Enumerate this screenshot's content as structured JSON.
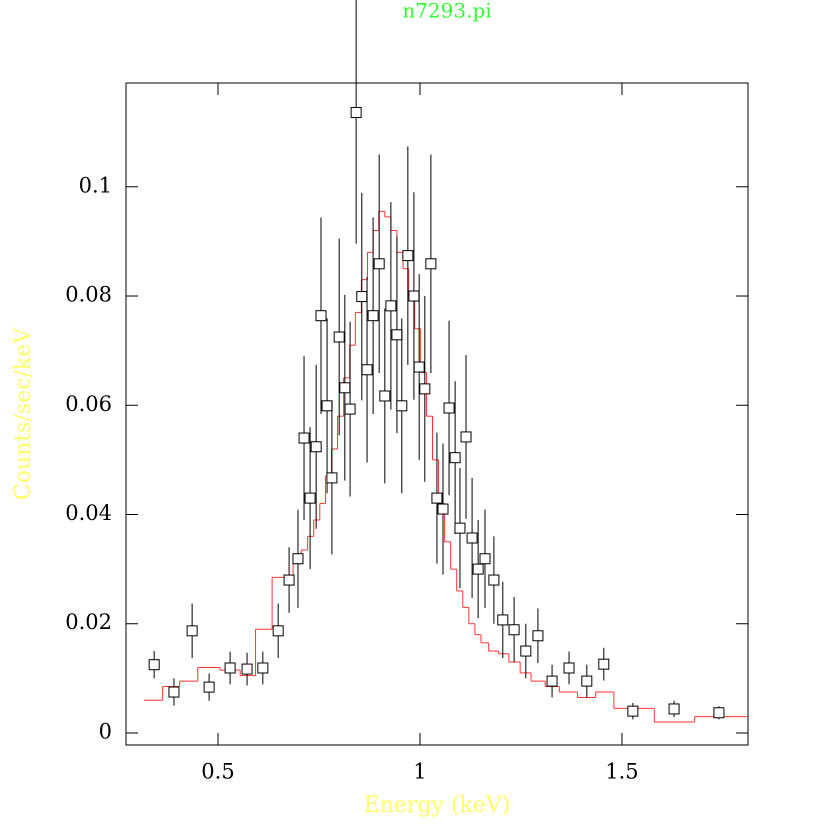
{
  "chart_data": {
    "type": "scatter",
    "title": "n7293.pi",
    "title_color": "#33ff33",
    "xlabel": "Energy (keV)",
    "ylabel": "Counts/sec/keV",
    "label_color": "#ffff66",
    "xlim": [
      0.2723,
      1.812
    ],
    "ylim": [
      -0.0022,
      0.119
    ],
    "xticks": [
      0.5,
      1,
      1.5
    ],
    "yticks": [
      0,
      0.02,
      0.04,
      0.06,
      0.08,
      0.1
    ],
    "series": [
      {
        "color": "#000000",
        "x": [
          0.342,
          0.391,
          0.436,
          0.478,
          0.53,
          0.572,
          0.611,
          0.649,
          0.676,
          0.698,
          0.713,
          0.728,
          0.743,
          0.755,
          0.77,
          0.782,
          0.8,
          0.814,
          0.827,
          0.842,
          0.856,
          0.869,
          0.884,
          0.899,
          0.913,
          0.928,
          0.943,
          0.955,
          0.97,
          0.985,
          0.998,
          1.012,
          1.027,
          1.042,
          1.057,
          1.072,
          1.087,
          1.099,
          1.114,
          1.129,
          1.144,
          1.161,
          1.183,
          1.205,
          1.233,
          1.262,
          1.292,
          1.327,
          1.369,
          1.413,
          1.455,
          1.527,
          1.629,
          1.74
        ],
        "values": [
          0.0125,
          0.0075,
          0.0187,
          0.0084,
          0.0119,
          0.0117,
          0.0119,
          0.0187,
          0.028,
          0.0319,
          0.054,
          0.043,
          0.0524,
          0.0764,
          0.0599,
          0.0467,
          0.0725,
          0.0632,
          0.0593,
          0.1136,
          0.0799,
          0.0665,
          0.0764,
          0.0859,
          0.0617,
          0.0782,
          0.0729,
          0.0599,
          0.0874,
          0.08,
          0.067,
          0.063,
          0.0859,
          0.043,
          0.041,
          0.0595,
          0.0504,
          0.0375,
          0.0542,
          0.0357,
          0.03,
          0.0319,
          0.028,
          0.0207,
          0.0189,
          0.015,
          0.0178,
          0.0095,
          0.0119,
          0.0095,
          0.0126,
          0.004,
          0.0044,
          0.0037
        ],
        "errors": [
          0.0025,
          0.0025,
          0.005,
          0.0025,
          0.003,
          0.003,
          0.003,
          0.005,
          0.006,
          0.009,
          0.015,
          0.013,
          0.015,
          0.018,
          0.016,
          0.014,
          0.018,
          0.017,
          0.016,
          0.024,
          0.019,
          0.017,
          0.018,
          0.02,
          0.016,
          0.019,
          0.018,
          0.016,
          0.02,
          0.019,
          0.017,
          0.017,
          0.02,
          0.012,
          0.012,
          0.016,
          0.014,
          0.011,
          0.015,
          0.011,
          0.009,
          0.009,
          0.008,
          0.007,
          0.006,
          0.005,
          0.005,
          0.003,
          0.003,
          0.003,
          0.003,
          0.0015,
          0.0015,
          0.0012
        ]
      }
    ],
    "model": {
      "color": "#ff3333",
      "bins": [
        0.317,
        0.363,
        0.405,
        0.45,
        0.505,
        0.555,
        0.593,
        0.634,
        0.686,
        0.706,
        0.722,
        0.737,
        0.752,
        0.766,
        0.781,
        0.796,
        0.811,
        0.826,
        0.84,
        0.855,
        0.87,
        0.884,
        0.898,
        0.913,
        0.928,
        0.943,
        0.958,
        0.972,
        0.987,
        1.001,
        1.016,
        1.031,
        1.046,
        1.061,
        1.076,
        1.091,
        1.106,
        1.121,
        1.136,
        1.151,
        1.17,
        1.195,
        1.22,
        1.248,
        1.275,
        1.31,
        1.345,
        1.39,
        1.435,
        1.48,
        1.58,
        1.68,
        1.81
      ],
      "values": [
        0.006,
        0.0085,
        0.0095,
        0.012,
        0.0115,
        0.0105,
        0.019,
        0.0285,
        0.031,
        0.0335,
        0.036,
        0.039,
        0.042,
        0.047,
        0.052,
        0.058,
        0.065,
        0.071,
        0.077,
        0.083,
        0.088,
        0.092,
        0.0955,
        0.0945,
        0.092,
        0.088,
        0.085,
        0.08,
        0.074,
        0.066,
        0.058,
        0.05,
        0.042,
        0.035,
        0.03,
        0.026,
        0.023,
        0.02,
        0.018,
        0.0165,
        0.015,
        0.0145,
        0.013,
        0.011,
        0.0095,
        0.0085,
        0.0075,
        0.0065,
        0.0075,
        0.0045,
        0.002,
        0.003
      ]
    }
  }
}
